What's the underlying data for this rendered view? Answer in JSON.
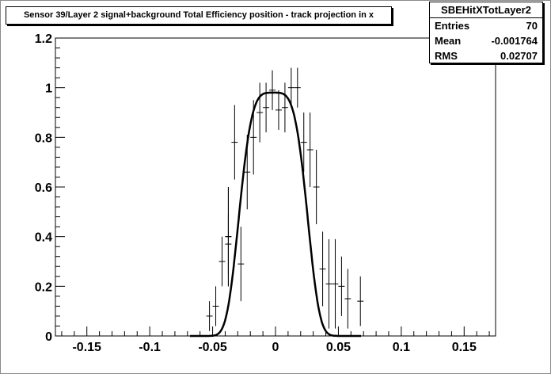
{
  "title": "Sensor 39/Layer 2 signal+background Total Efficiency position - track projection in x",
  "stats": {
    "name": "SBEHitXTotLayer2",
    "rows": [
      {
        "label": "Entries",
        "value": "70"
      },
      {
        "label": "Mean",
        "value": "-0.001764"
      },
      {
        "label": "RMS",
        "value": "0.02707"
      }
    ]
  },
  "chart_data": {
    "type": "scatter",
    "title": "Sensor 39/Layer 2 signal+background Total Efficiency position - track projection in x",
    "xlabel": "",
    "ylabel": "",
    "xlim": [
      -0.175,
      0.175
    ],
    "ylim": [
      0,
      1.2
    ],
    "x_ticks": [
      -0.15,
      -0.1,
      -0.05,
      0,
      0.05,
      0.1,
      0.15
    ],
    "x_tick_labels": [
      "-0.15",
      "-0.1",
      "-0.05",
      "0",
      "0.05",
      "0.1",
      "0.15"
    ],
    "y_ticks": [
      0,
      0.2,
      0.4,
      0.6,
      0.8,
      1,
      1.2
    ],
    "y_tick_labels": [
      "0",
      "0.2",
      "0.4",
      "0.6",
      "0.8",
      "1",
      "1.2"
    ],
    "bin_width": 0.005,
    "series": [
      {
        "type": "points",
        "x": [
          -0.0525,
          -0.0475,
          -0.0425,
          -0.0375,
          -0.0325,
          -0.0275,
          -0.0375,
          -0.0375,
          -0.0225,
          -0.0175,
          -0.0125,
          -0.0075,
          -0.0025,
          0.0025,
          0.0075,
          0.0125,
          0.0175,
          0.0225,
          0.0275,
          0.0325,
          0.0375,
          0.0425,
          0.0475,
          0.0525,
          0.0575,
          0.0675
        ],
        "y": [
          0.08,
          0.12,
          0.3,
          0.37,
          0.78,
          0.29,
          0.4,
          0.4,
          0.66,
          0.8,
          0.9,
          0.92,
          0.99,
          0.91,
          0.92,
          1.0,
          1.0,
          0.78,
          0.75,
          0.6,
          0.27,
          0.21,
          0.21,
          0.2,
          0.15,
          0.14
        ],
        "yerr": [
          0.06,
          0.08,
          0.1,
          0.12,
          0.15,
          0.15,
          0.2,
          0.2,
          0.15,
          0.15,
          0.12,
          0.1,
          0.08,
          0.08,
          0.1,
          0.08,
          0.08,
          0.12,
          0.15,
          0.15,
          0.15,
          0.18,
          0.18,
          0.12,
          0.12,
          0.1
        ]
      },
      {
        "type": "fit_curve",
        "amplitude": 0.98,
        "center": -0.0018,
        "sigma": 0.025,
        "range": [
          -0.068,
          0.068
        ]
      }
    ],
    "grid": false,
    "legend": "none"
  }
}
